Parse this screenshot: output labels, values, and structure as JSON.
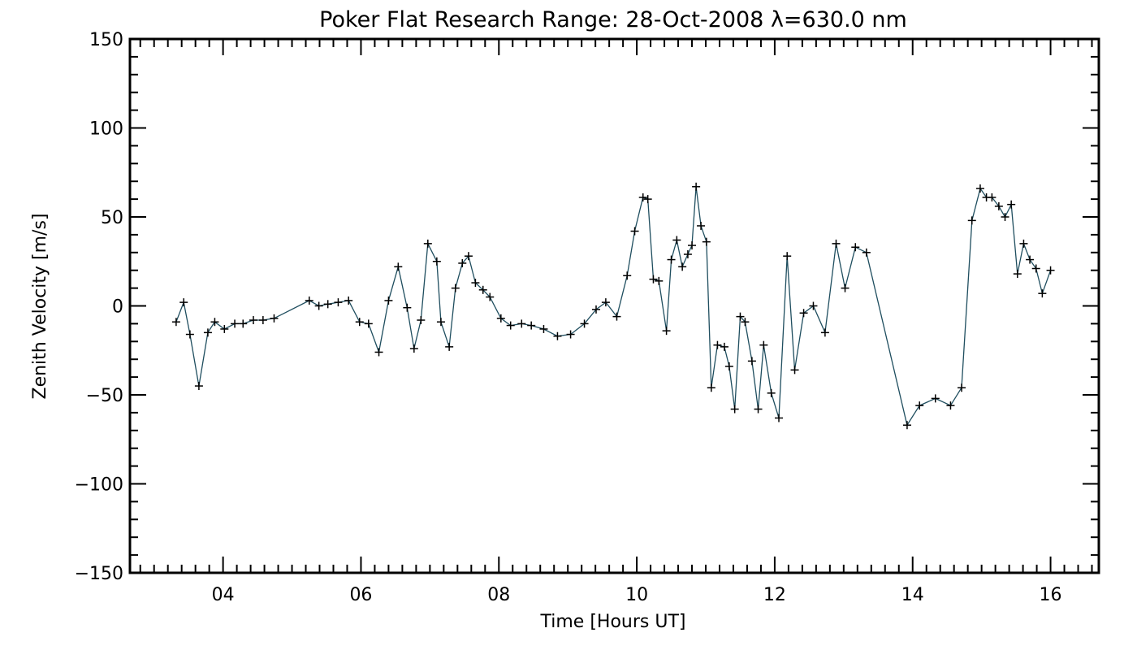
{
  "chart_data": {
    "type": "line",
    "title": "Poker Flat Research Range: 28-Oct-2008 λ=630.0 nm",
    "xlabel": "Time [Hours UT]",
    "ylabel": "Zenith Velocity [m/s]",
    "xlim": [
      2.65,
      16.7
    ],
    "ylim": [
      -150,
      150
    ],
    "xticks": [
      {
        "value": 4,
        "label": "04"
      },
      {
        "value": 6,
        "label": "06"
      },
      {
        "value": 8,
        "label": "08"
      },
      {
        "value": 10,
        "label": "10"
      },
      {
        "value": 12,
        "label": "12"
      },
      {
        "value": 14,
        "label": "14"
      },
      {
        "value": 16,
        "label": "16"
      }
    ],
    "yticks": [
      {
        "value": 150,
        "label": "150"
      },
      {
        "value": 100,
        "label": "100"
      },
      {
        "value": 50,
        "label": "50"
      },
      {
        "value": 0,
        "label": "0"
      },
      {
        "value": -50,
        "label": "−50"
      },
      {
        "value": -100,
        "label": "−100"
      },
      {
        "value": -150,
        "label": "−150"
      }
    ],
    "line_color": "#1f4e5f",
    "marker": "plus",
    "grid": false,
    "series": [
      {
        "x": [
          3.32,
          3.43,
          3.52,
          3.65,
          3.78,
          3.88,
          4.02,
          4.17,
          4.29,
          4.44,
          4.58,
          4.74,
          5.25,
          5.39,
          5.52,
          5.67,
          5.82,
          5.98,
          6.11,
          6.26,
          6.4,
          6.54,
          6.67,
          6.77,
          6.87,
          6.97,
          7.1,
          7.16,
          7.28,
          7.37,
          7.47,
          7.56,
          7.66,
          7.77,
          7.87,
          8.03,
          8.17,
          8.33,
          8.47,
          8.65,
          8.85,
          9.04,
          9.24,
          9.41,
          9.55,
          9.71,
          9.86,
          9.97,
          10.09,
          10.16,
          10.24,
          10.32,
          10.43,
          10.5,
          10.58,
          10.66,
          10.74,
          10.8,
          10.86,
          10.93,
          11.01,
          11.08,
          11.17,
          11.27,
          11.34,
          11.42,
          11.5,
          11.57,
          11.67,
          11.76,
          11.84,
          11.95,
          12.06,
          12.18,
          12.29,
          12.42,
          12.56,
          12.73,
          12.89,
          13.02,
          13.17,
          13.33,
          13.92,
          14.1,
          14.33,
          14.55,
          14.71,
          14.86,
          14.98,
          15.07,
          15.15,
          15.25,
          15.34,
          15.43,
          15.52,
          15.61,
          15.7,
          15.79,
          15.88,
          16.0
        ],
        "y": [
          -9,
          2,
          -16,
          -45,
          -15,
          -9,
          -13,
          -10,
          -10,
          -8,
          -8,
          -7,
          3,
          0,
          1,
          2,
          3,
          -9,
          -10,
          -26,
          3,
          22,
          -1,
          -24,
          -8,
          35,
          25,
          -9,
          -23,
          10,
          24,
          28,
          13,
          9,
          5,
          -7,
          -11,
          -10,
          -11,
          -13,
          -17,
          -16,
          -10,
          -2,
          2,
          -6,
          17,
          42,
          61,
          60,
          15,
          14,
          -14,
          26,
          37,
          22,
          29,
          34,
          67,
          45,
          36,
          -46,
          -22,
          -23,
          -34,
          -58,
          -6,
          -9,
          -31,
          -58,
          -22,
          -49,
          -63,
          28,
          -36,
          -4,
          0,
          -15,
          35,
          10,
          33,
          30,
          -67,
          -56,
          -52,
          -56,
          -46,
          48,
          66,
          61,
          61,
          56,
          50,
          57,
          18,
          35,
          26,
          21,
          7,
          20
        ]
      }
    ]
  }
}
